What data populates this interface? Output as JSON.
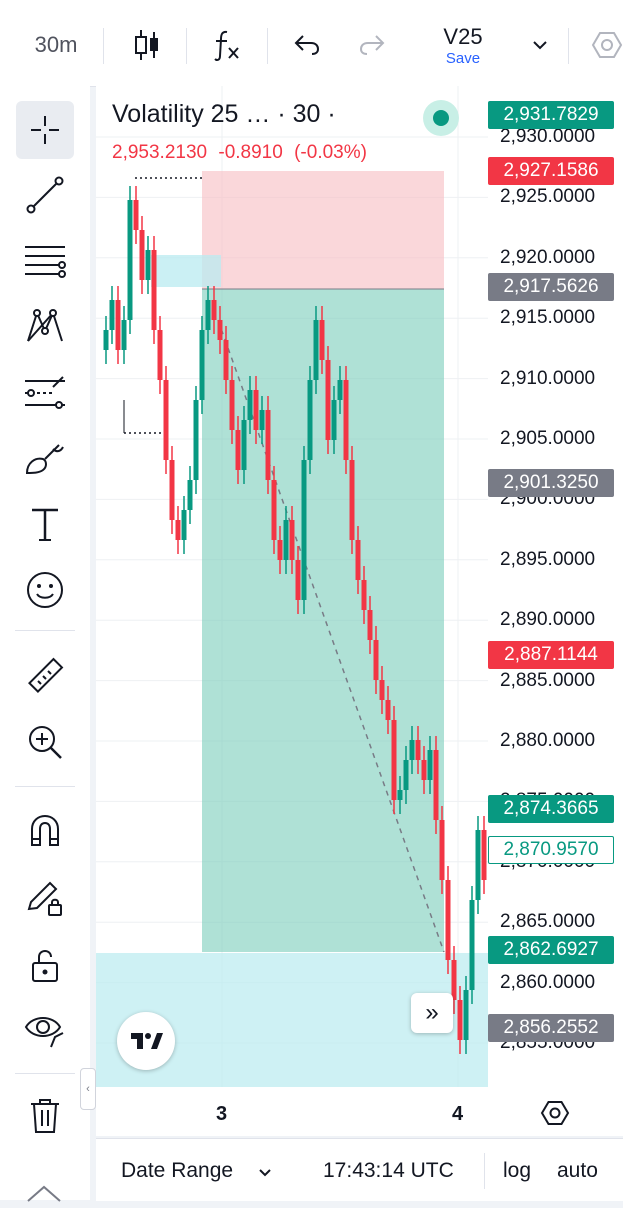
{
  "toolbar": {
    "interval": "30m",
    "layout_name": "V25",
    "save_label": "Save"
  },
  "legend": {
    "symbol": "Volatility 25 … · 30 ·",
    "price": "2,953.2130",
    "change": "-0.8910",
    "change_pct": "(-0.03%)"
  },
  "price_scale": {
    "labels": [
      "2,930.0000",
      "2,925.0000",
      "2,920.0000",
      "2,915.0000",
      "2,910.0000",
      "2,905.0000",
      "2,900.0000",
      "2,895.0000",
      "2,890.0000",
      "2,885.0000",
      "2,880.0000",
      "2,875.0000",
      "2,870.0000",
      "2,865.0000",
      "2,860.0000",
      "2,855.0000"
    ],
    "tags": [
      {
        "text": "2,931.7829",
        "color": "#089981",
        "style": "fill"
      },
      {
        "text": "2,927.1586",
        "color": "#f23645",
        "style": "fill"
      },
      {
        "text": "2,917.5626",
        "color": "#787b86",
        "style": "fill"
      },
      {
        "text": "2,901.3250",
        "color": "#787b86",
        "style": "fill"
      },
      {
        "text": "2,887.1144",
        "color": "#f23645",
        "style": "fill"
      },
      {
        "text": "2,874.3665",
        "color": "#089981",
        "style": "fill"
      },
      {
        "text": "2,870.9570",
        "color": "#089981",
        "style": "outline"
      },
      {
        "text": "2,862.6927",
        "color": "#089981",
        "style": "fill"
      },
      {
        "text": "2,856.2552",
        "color": "#787b86",
        "style": "fill"
      }
    ]
  },
  "time_scale": {
    "labels": [
      "3",
      "4"
    ]
  },
  "bottom": {
    "date_range_label": "Date Range",
    "time": "17:43:14 UTC",
    "log_label": "log",
    "auto_label": "auto"
  },
  "colors": {
    "up": "#089981",
    "down": "#f23645",
    "accent": "#2962ff"
  }
}
